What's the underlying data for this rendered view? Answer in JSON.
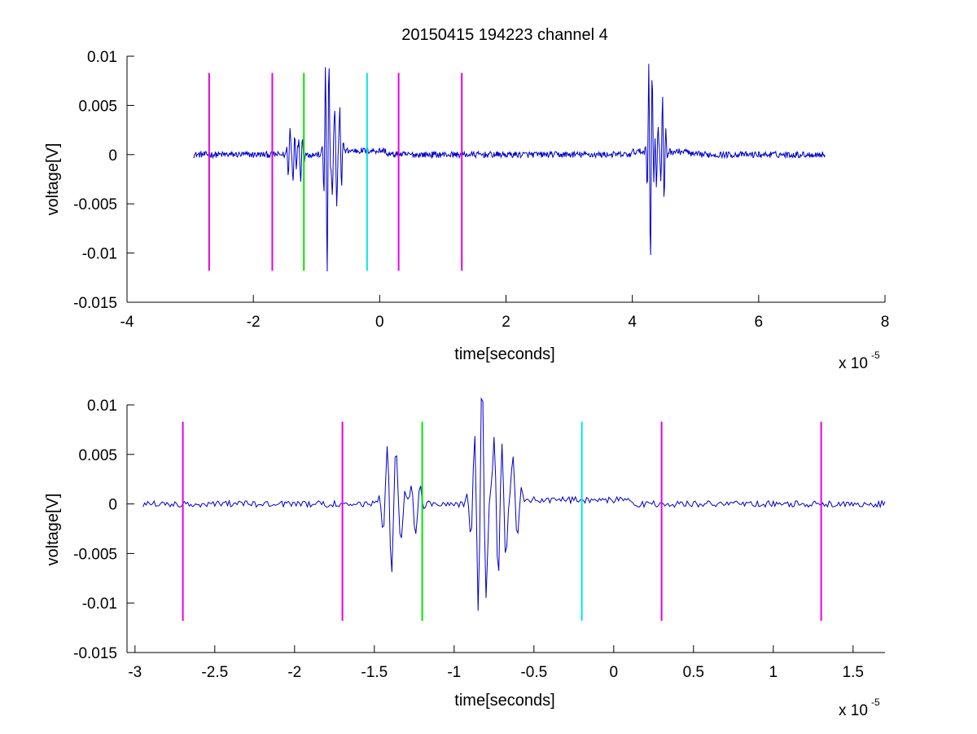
{
  "figure": {
    "title": "20150415 194223 channel 4",
    "background": "#ffffff"
  },
  "chart_data": [
    {
      "type": "line",
      "title": "20150415 194223 channel 4",
      "xlabel": "time[seconds]",
      "ylabel": "voltage[V]",
      "x_exponent_label": "x 10",
      "x_exponent_power": "-5",
      "xlim": [
        -4,
        8
      ],
      "ylim": [
        -0.015,
        0.01
      ],
      "xticks": [
        -4,
        -2,
        0,
        2,
        4,
        6,
        8
      ],
      "xtick_labels": [
        "-4",
        "-2",
        "0",
        "2",
        "4",
        "6",
        "8"
      ],
      "yticks": [
        0.01,
        0.005,
        0,
        -0.005,
        -0.01,
        -0.015
      ],
      "ytick_labels": [
        "0.01",
        "0.005",
        "0",
        "-0.005",
        "-0.01",
        "-0.015"
      ],
      "grid": false,
      "legend": "none",
      "signal": {
        "color": "#0000c8",
        "x_range": [
          -2.95,
          7.05
        ],
        "baseline_noise": 0.0004,
        "bursts": [
          {
            "t": -1.42,
            "amp": 0.0032
          },
          {
            "t": -1.37,
            "amp": -0.0033
          },
          {
            "t": -1.3,
            "amp": 0.0012
          },
          {
            "t": -1.25,
            "amp": -0.003
          },
          {
            "t": -0.85,
            "amp": 0.0077
          },
          {
            "t": -0.84,
            "amp": -0.0097
          },
          {
            "t": -0.8,
            "amp": 0.0068
          },
          {
            "t": -0.75,
            "amp": -0.0052
          },
          {
            "t": -0.68,
            "amp": -0.0063
          },
          {
            "t": -0.63,
            "amp": 0.0057
          },
          {
            "t": 4.27,
            "amp": 0.0071
          },
          {
            "t": 4.28,
            "amp": -0.0106
          },
          {
            "t": 4.32,
            "amp": 0.0045
          },
          {
            "t": 4.38,
            "amp": -0.004
          },
          {
            "t": 4.48,
            "amp": 0.004
          },
          {
            "t": 4.5,
            "amp": -0.003
          }
        ],
        "offset_segments": [
          {
            "from": -0.62,
            "to": 0.1,
            "level": 0.0004
          },
          {
            "from": 4.0,
            "to": 4.9,
            "level": 0.0003
          }
        ]
      },
      "markers": [
        {
          "x": -2.7,
          "color": "#e600e6",
          "y_top": 0.0083,
          "y_bottom": -0.0118
        },
        {
          "x": -1.7,
          "color": "#e600e6",
          "y_top": 0.0083,
          "y_bottom": -0.0118
        },
        {
          "x": -1.2,
          "color": "#00e600",
          "y_top": 0.0083,
          "y_bottom": -0.0118
        },
        {
          "x": -0.2,
          "color": "#00e6e6",
          "y_top": 0.0083,
          "y_bottom": -0.0118
        },
        {
          "x": 0.3,
          "color": "#e600e6",
          "y_top": 0.0083,
          "y_bottom": -0.0118
        },
        {
          "x": 1.3,
          "color": "#e600e6",
          "y_top": 0.0083,
          "y_bottom": -0.0118
        }
      ]
    },
    {
      "type": "line",
      "title": "",
      "xlabel": "time[seconds]",
      "ylabel": "voltage[V]",
      "x_exponent_label": "x 10",
      "x_exponent_power": "-5",
      "xlim": [
        -3.05,
        1.7
      ],
      "ylim": [
        -0.015,
        0.01
      ],
      "xticks": [
        -3,
        -2.5,
        -2,
        -1.5,
        -1,
        -0.5,
        0,
        0.5,
        1,
        1.5
      ],
      "xtick_labels": [
        "-3",
        "-2.5",
        "-2",
        "-1.5",
        "-1",
        "-0.5",
        "0",
        "0.5",
        "1",
        "1.5"
      ],
      "yticks": [
        0.01,
        0.005,
        0,
        -0.005,
        -0.01,
        -0.015
      ],
      "ytick_labels": [
        "0.01",
        "0.005",
        "0",
        "-0.005",
        "-0.01",
        "-0.015"
      ],
      "grid": false,
      "legend": "none",
      "signal": {
        "color": "#0000c8",
        "x_range": [
          -2.95,
          1.7
        ],
        "baseline_noise": 0.0004,
        "bursts": [
          {
            "t": -1.42,
            "amp": 0.0032
          },
          {
            "t": -1.39,
            "amp": -0.0031
          },
          {
            "t": -1.37,
            "amp": 0.0025
          },
          {
            "t": -1.33,
            "amp": -0.003
          },
          {
            "t": -1.28,
            "amp": 0.0012
          },
          {
            "t": -1.24,
            "amp": -0.0028
          },
          {
            "t": -0.86,
            "amp": 0.0077
          },
          {
            "t": -0.85,
            "amp": -0.0097
          },
          {
            "t": -0.83,
            "amp": 0.0074
          },
          {
            "t": -0.8,
            "amp": -0.0055
          },
          {
            "t": -0.75,
            "amp": 0.005
          },
          {
            "t": -0.72,
            "amp": -0.0045
          },
          {
            "t": -0.68,
            "amp": -0.0065
          },
          {
            "t": -0.63,
            "amp": 0.0057
          }
        ],
        "offset_segments": [
          {
            "from": -0.62,
            "to": 0.1,
            "level": 0.0004
          }
        ]
      },
      "markers": [
        {
          "x": -2.7,
          "color": "#e600e6",
          "y_top": 0.0083,
          "y_bottom": -0.0118
        },
        {
          "x": -1.7,
          "color": "#e600e6",
          "y_top": 0.0083,
          "y_bottom": -0.0118
        },
        {
          "x": -1.2,
          "color": "#00e600",
          "y_top": 0.0083,
          "y_bottom": -0.0118
        },
        {
          "x": -0.2,
          "color": "#00e6e6",
          "y_top": 0.0083,
          "y_bottom": -0.0118
        },
        {
          "x": 0.3,
          "color": "#e600e6",
          "y_top": 0.0083,
          "y_bottom": -0.0118
        },
        {
          "x": 1.3,
          "color": "#e600e6",
          "y_top": 0.0083,
          "y_bottom": -0.0118
        }
      ]
    }
  ]
}
